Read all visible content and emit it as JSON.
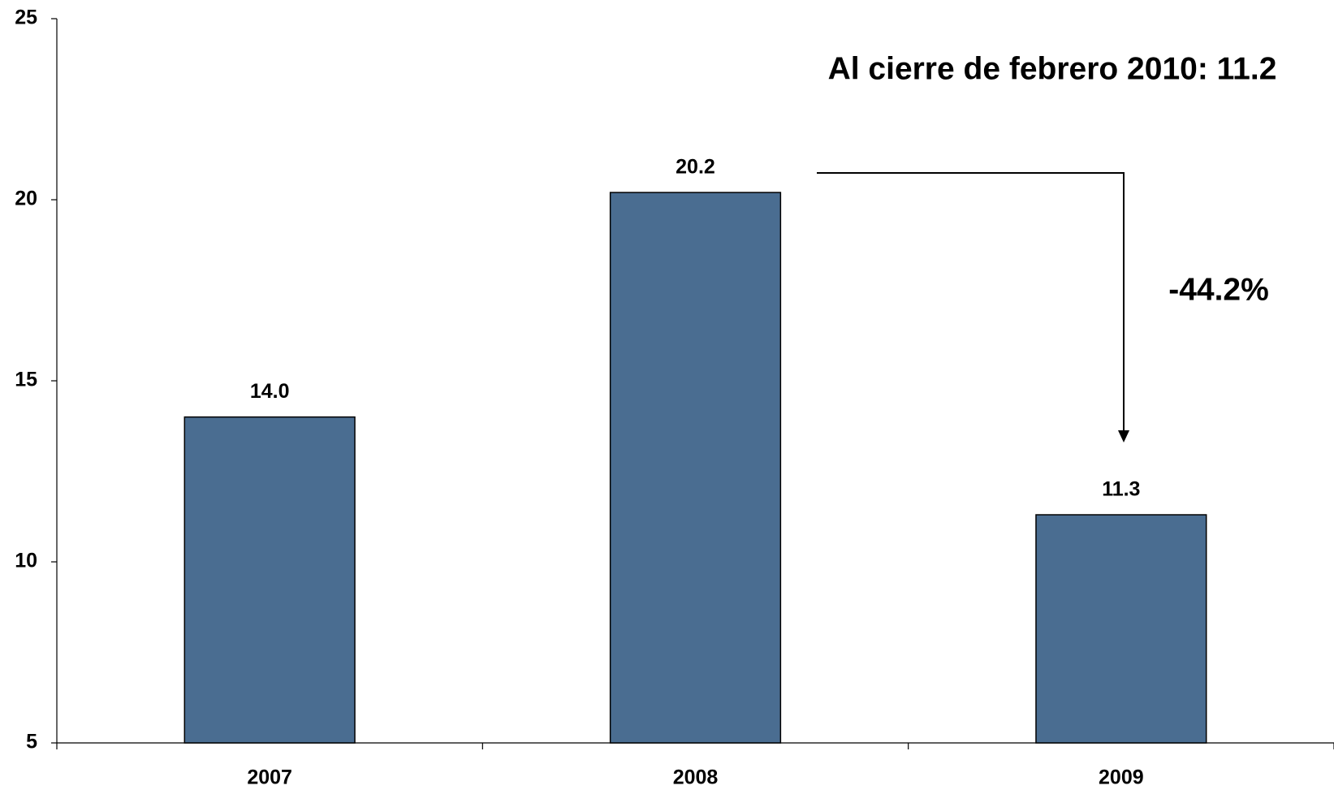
{
  "chart_data": {
    "type": "bar",
    "categories": [
      "2007",
      "2008",
      "2009"
    ],
    "values": [
      14.0,
      20.2,
      11.3
    ],
    "value_labels": [
      "14.0",
      "20.2",
      "11.3"
    ],
    "color": "#4a6d91",
    "ylim": [
      5,
      25
    ],
    "yticks": [
      5,
      10,
      15,
      20,
      25
    ],
    "grid": false,
    "annotations": [
      "Al cierre de febrero 2010: 11.2",
      "-44.2%"
    ]
  }
}
